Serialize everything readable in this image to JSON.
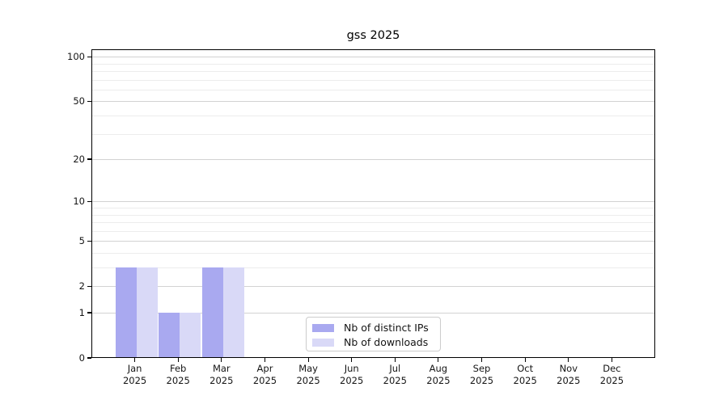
{
  "chart_data": {
    "type": "bar",
    "title": "gss 2025",
    "categories": [
      "Jan",
      "Feb",
      "Mar",
      "Apr",
      "May",
      "Jun",
      "Jul",
      "Aug",
      "Sep",
      "Oct",
      "Nov",
      "Dec"
    ],
    "year_label": "2025",
    "series": [
      {
        "name": "Nb of distinct IPs",
        "color": "#a9a9f0",
        "values": [
          3,
          1,
          3,
          0,
          0,
          0,
          0,
          0,
          0,
          0,
          0,
          0
        ]
      },
      {
        "name": "Nb of downloads",
        "color": "#d9d9f7",
        "values": [
          3,
          1,
          3,
          0,
          0,
          0,
          0,
          0,
          0,
          0,
          0,
          0
        ]
      }
    ],
    "yscale": "log1p",
    "ylim": [
      0,
      112
    ],
    "yticks_major": [
      0,
      1,
      2,
      5,
      10,
      20,
      50,
      100
    ],
    "yticks_minor": [
      3,
      4,
      6,
      7,
      8,
      9,
      30,
      40,
      60,
      70,
      80,
      90
    ],
    "grid": "horizontal",
    "legend_position": "bottom-center"
  },
  "colors": {
    "major_grid": "#d2d2d2",
    "minor_grid": "#ececec",
    "spine": "#000000",
    "text": "#151515"
  }
}
